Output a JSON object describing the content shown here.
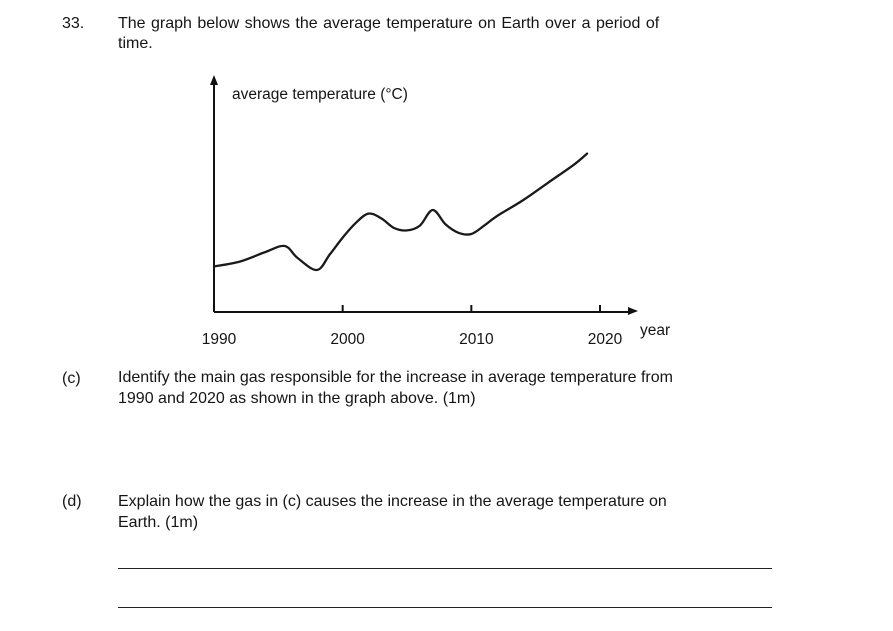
{
  "question": {
    "number": "33.",
    "stem_line1": "The graph below shows the average temperature on Earth over a period of",
    "stem_line2": "time."
  },
  "chart_data": {
    "type": "line",
    "ylabel": "average temperature (°C)",
    "xlabel": "year",
    "x_ticks": [
      "1990",
      "2000",
      "2010",
      "2020"
    ],
    "series": [
      {
        "x": [
          1990,
          1992,
          1994,
          1995.5,
          1996.5,
          1998,
          1999,
          2000,
          2001,
          2002,
          2003,
          2004,
          2005,
          2006,
          2007,
          2008,
          2009,
          2010,
          2011,
          2012,
          2014,
          2016,
          2018,
          2019
        ],
        "y": [
          0.38,
          0.42,
          0.5,
          0.55,
          0.45,
          0.35,
          0.48,
          0.62,
          0.74,
          0.82,
          0.78,
          0.7,
          0.68,
          0.72,
          0.85,
          0.73,
          0.66,
          0.65,
          0.72,
          0.8,
          0.93,
          1.08,
          1.23,
          1.32
        ]
      }
    ]
  },
  "parts": {
    "c": {
      "label": "(c)",
      "line1": "Identify the main gas responsible for the increase in average temperature from",
      "line2": "1990 and 2020 as shown in the graph above. (1m)"
    },
    "d": {
      "label": "(d)",
      "line1": "Explain how the gas in (c) causes the increase in the average temperature on",
      "line2": "Earth. (1m)"
    }
  }
}
